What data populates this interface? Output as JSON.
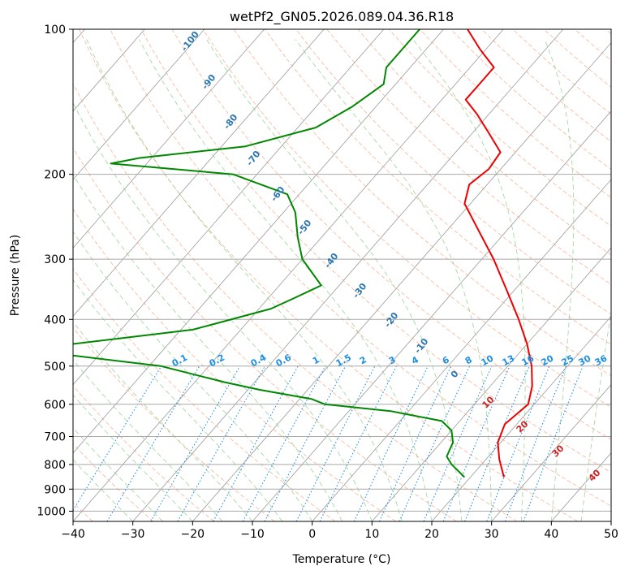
{
  "chart_data": {
    "type": "line",
    "title": "wetPf2_GN05.2026.089.04.36.R18",
    "xlabel": "Temperature (°C)",
    "ylabel": "Pressure (hPa)",
    "xlim": [
      -40,
      50
    ],
    "ylim": [
      1050,
      100
    ],
    "y_scale": "log",
    "grid": true,
    "x_ticks": [
      -40,
      -30,
      -20,
      -10,
      0,
      10,
      20,
      30,
      40,
      50
    ],
    "y_ticks": [
      100,
      200,
      300,
      400,
      500,
      600,
      700,
      800,
      900,
      1000
    ],
    "skew_axis": "skew-T",
    "series": [
      {
        "color": "#ee0000",
        "points": [
          {
            "p": 850,
            "t": 25.6
          },
          {
            "p": 780,
            "t": 22.2
          },
          {
            "p": 720,
            "t": 19.5
          },
          {
            "p": 660,
            "t": 18.0
          },
          {
            "p": 600,
            "t": 19.0
          },
          {
            "p": 550,
            "t": 17.0
          },
          {
            "p": 500,
            "t": 14.0
          },
          {
            "p": 450,
            "t": 10.0
          },
          {
            "p": 400,
            "t": 5.0
          },
          {
            "p": 350,
            "t": -1.0
          },
          {
            "p": 300,
            "t": -8.0
          },
          {
            "p": 260,
            "t": -15.0
          },
          {
            "p": 230,
            "t": -21.0
          },
          {
            "p": 210,
            "t": -23.0
          },
          {
            "p": 195,
            "t": -22.0
          },
          {
            "p": 180,
            "t": -22.5
          },
          {
            "p": 165,
            "t": -27.0
          },
          {
            "p": 150,
            "t": -32.0
          },
          {
            "p": 140,
            "t": -36.0
          },
          {
            "p": 130,
            "t": -36.0
          },
          {
            "p": 120,
            "t": -36.0
          },
          {
            "p": 110,
            "t": -41.0
          },
          {
            "p": 100,
            "t": -46.0
          }
        ]
      },
      {
        "color": "#008800",
        "points": [
          {
            "p": 850,
            "t": 19.0
          },
          {
            "p": 800,
            "t": 15.0
          },
          {
            "p": 770,
            "t": 13.0
          },
          {
            "p": 720,
            "t": 12.0
          },
          {
            "p": 680,
            "t": 10.0
          },
          {
            "p": 650,
            "t": 7.0
          },
          {
            "p": 620,
            "t": -3.0
          },
          {
            "p": 600,
            "t": -15.0
          },
          {
            "p": 585,
            "t": -18.0
          },
          {
            "p": 560,
            "t": -28.0
          },
          {
            "p": 540,
            "t": -35.0
          },
          {
            "p": 500,
            "t": -48.0
          },
          {
            "p": 470,
            "t": -68.0
          },
          {
            "p": 450,
            "t": -66.0
          },
          {
            "p": 420,
            "t": -48.0
          },
          {
            "p": 380,
            "t": -38.0
          },
          {
            "p": 360,
            "t": -35.5
          },
          {
            "p": 340,
            "t": -33.0
          },
          {
            "p": 300,
            "t": -40.0
          },
          {
            "p": 270,
            "t": -44.0
          },
          {
            "p": 240,
            "t": -48.0
          },
          {
            "p": 220,
            "t": -52.0
          },
          {
            "p": 200,
            "t": -64.0
          },
          {
            "p": 190,
            "t": -86.0
          },
          {
            "p": 185,
            "t": -82.0
          },
          {
            "p": 175,
            "t": -66.0
          },
          {
            "p": 160,
            "t": -57.0
          },
          {
            "p": 145,
            "t": -54.0
          },
          {
            "p": 130,
            "t": -52.0
          },
          {
            "p": 120,
            "t": -54.0
          },
          {
            "p": 110,
            "t": -54.0
          },
          {
            "p": 100,
            "t": -54.0
          }
        ]
      }
    ],
    "dry_adiabat_labels": [
      "-100",
      "-90",
      "-80",
      "-70",
      "-60",
      "-50",
      "-40",
      "-30",
      "-20",
      "-10",
      "0"
    ],
    "moist_adiabat_labels": [
      "10",
      "20",
      "30",
      "40"
    ],
    "mixing_ratio_labels": [
      "0.1",
      "0.2",
      "0.4",
      "0.6",
      "1",
      "1.5",
      "2",
      "3",
      "4",
      "6",
      "8",
      "10",
      "13",
      "16",
      "20",
      "25",
      "30",
      "36"
    ],
    "colors": {
      "temperature": "#ee0000",
      "dewpoint": "#008800",
      "dry_adiabat": "#f4a582",
      "moist_adiabat": "#8fcf8f",
      "mixing_ratio": "#1e8fe6",
      "isotherm": "#9a9a9a"
    }
  }
}
